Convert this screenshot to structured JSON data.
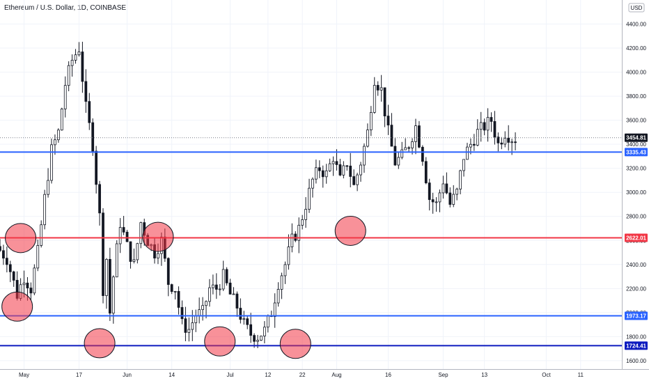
{
  "chart_data": {
    "type": "candlestick",
    "title": "Ethereum / U.S. Dollar, 1D, COINBASE",
    "currency_label": "USD",
    "y_ticks": [
      1600,
      1800,
      2000,
      2200,
      2400,
      2600,
      2800,
      3000,
      3200,
      3400,
      3600,
      3800,
      4000,
      4200,
      4400
    ],
    "y_tick_labels": [
      "1600.00",
      "1800.00",
      "2000.00",
      "2200.00",
      "2400.00",
      "2600.00",
      "2800.00",
      "3000.00",
      "3200.00",
      "3400.00",
      "3600.00",
      "3800.00",
      "4000.00",
      "4200.00",
      "4400.00"
    ],
    "ylim": [
      1530,
      4600
    ],
    "x_labels": [
      {
        "label": "May",
        "day": 4
      },
      {
        "label": "17",
        "day": 20
      },
      {
        "label": "Jun",
        "day": 34
      },
      {
        "label": "14",
        "day": 47
      },
      {
        "label": "Jul",
        "day": 64
      },
      {
        "label": "12",
        "day": 75
      },
      {
        "label": "22",
        "day": 85
      },
      {
        "label": "Aug",
        "day": 95
      },
      {
        "label": "16",
        "day": 110
      },
      {
        "label": "Sep",
        "day": 126
      },
      {
        "label": "13",
        "day": 138
      },
      {
        "label": "Oct",
        "day": 156
      },
      {
        "label": "11",
        "day": 166
      }
    ],
    "day_range": [
      -3,
      178
    ],
    "current_price": {
      "value": 3454.81,
      "label": "3454.81"
    },
    "levels": [
      {
        "value": 3335.43,
        "label": "3335.43",
        "color": "#2962ff"
      },
      {
        "value": 2622.01,
        "label": "2622.01",
        "color": "#f23645"
      },
      {
        "value": 1973.17,
        "label": "1973.17",
        "color": "#2962ff"
      },
      {
        "value": 1724.41,
        "label": "1724.41",
        "color": "#0d1bbf"
      }
    ],
    "annotations": [
      {
        "type": "ellipse",
        "day": 3,
        "price": 2620
      },
      {
        "type": "ellipse",
        "day": 2,
        "price": 2050
      },
      {
        "type": "ellipse",
        "day": 26,
        "price": 1745
      },
      {
        "type": "ellipse",
        "day": 43,
        "price": 2630
      },
      {
        "type": "ellipse",
        "day": 61,
        "price": 1760
      },
      {
        "type": "ellipse",
        "day": 83,
        "price": 1740
      },
      {
        "type": "ellipse",
        "day": 99,
        "price": 2680
      }
    ],
    "price_path": [
      [
        -3,
        2550
      ],
      [
        0,
        2450
      ],
      [
        3,
        2150
      ],
      [
        5,
        2300
      ],
      [
        7,
        2200
      ],
      [
        9,
        2500
      ],
      [
        11,
        2950
      ],
      [
        13,
        3350
      ],
      [
        15,
        3500
      ],
      [
        17,
        3900
      ],
      [
        19,
        4100
      ],
      [
        21,
        4200
      ],
      [
        23,
        3700
      ],
      [
        25,
        3400
      ],
      [
        27,
        2800
      ],
      [
        28,
        2200
      ],
      [
        29,
        2450
      ],
      [
        30,
        2000
      ],
      [
        31,
        2300
      ],
      [
        33,
        2750
      ],
      [
        35,
        2550
      ],
      [
        37,
        2400
      ],
      [
        39,
        2750
      ],
      [
        41,
        2600
      ],
      [
        43,
        2500
      ],
      [
        45,
        2600
      ],
      [
        47,
        2250
      ],
      [
        49,
        2200
      ],
      [
        51,
        1900
      ],
      [
        53,
        1860
      ],
      [
        55,
        1980
      ],
      [
        57,
        2000
      ],
      [
        59,
        2200
      ],
      [
        61,
        2200
      ],
      [
        63,
        2300
      ],
      [
        65,
        2150
      ],
      [
        67,
        2050
      ],
      [
        69,
        1900
      ],
      [
        71,
        1820
      ],
      [
        73,
        1800
      ],
      [
        75,
        1850
      ],
      [
        77,
        2000
      ],
      [
        79,
        2250
      ],
      [
        81,
        2400
      ],
      [
        83,
        2600
      ],
      [
        85,
        2700
      ],
      [
        87,
        2900
      ],
      [
        89,
        3100
      ],
      [
        91,
        3200
      ],
      [
        93,
        3150
      ],
      [
        95,
        3300
      ],
      [
        97,
        3100
      ],
      [
        99,
        3250
      ],
      [
        101,
        3050
      ],
      [
        103,
        3250
      ],
      [
        105,
        3500
      ],
      [
        107,
        3950
      ],
      [
        109,
        3850
      ],
      [
        111,
        3500
      ],
      [
        113,
        3250
      ],
      [
        115,
        3300
      ],
      [
        117,
        3400
      ],
      [
        119,
        3550
      ],
      [
        121,
        3300
      ],
      [
        123,
        2950
      ],
      [
        125,
        2900
      ],
      [
        127,
        3100
      ],
      [
        129,
        2900
      ],
      [
        131,
        3000
      ],
      [
        133,
        3300
      ],
      [
        135,
        3400
      ],
      [
        137,
        3500
      ],
      [
        139,
        3550
      ],
      [
        141,
        3600
      ],
      [
        143,
        3400
      ],
      [
        145,
        3500
      ],
      [
        147,
        3450
      ]
    ]
  }
}
